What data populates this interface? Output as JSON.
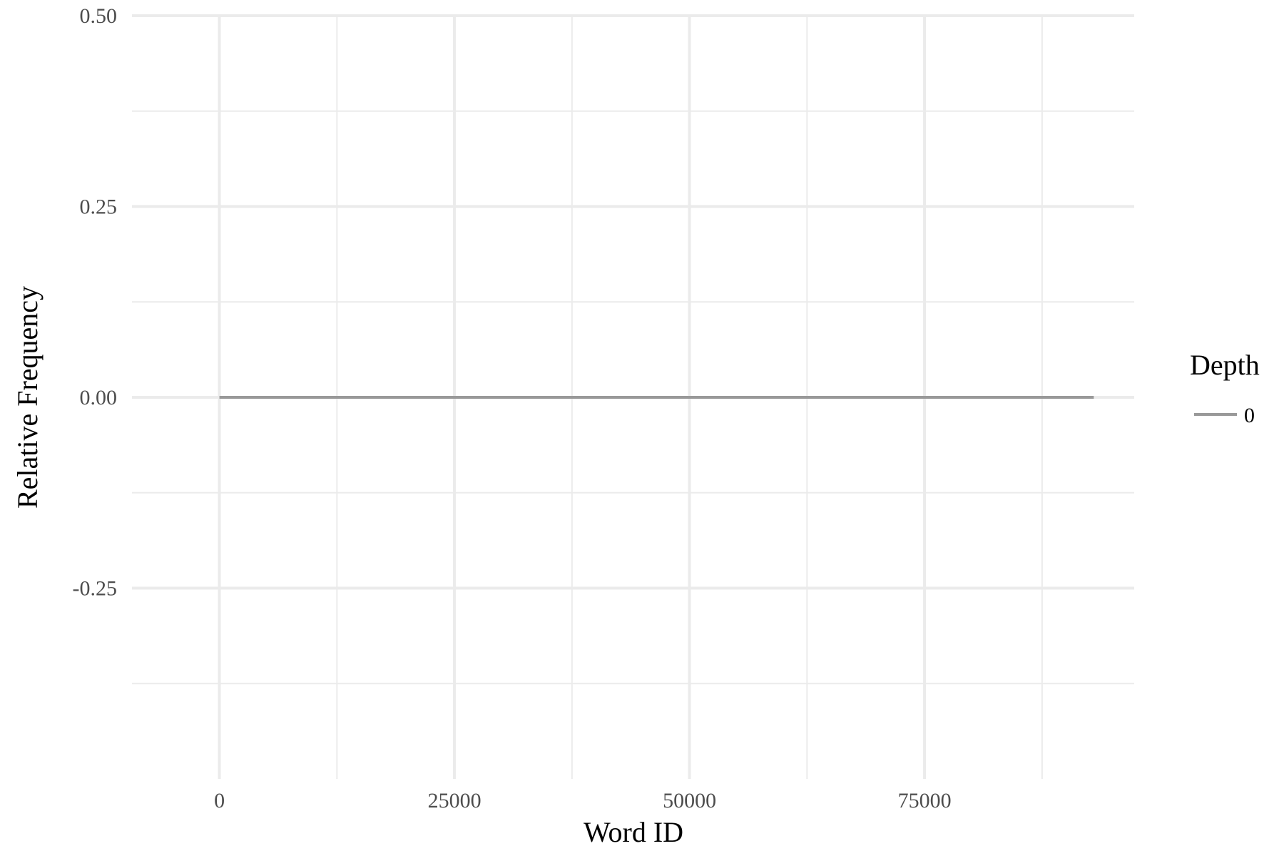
{
  "chart_data": {
    "type": "line",
    "xlabel": "Word ID",
    "ylabel": "Relative Frequency",
    "xlim": [
      -9300,
      97300
    ],
    "ylim": [
      -0.5,
      0.5
    ],
    "x_ticks": [
      0,
      25000,
      50000,
      75000
    ],
    "x_tick_labels": [
      "0",
      "25000",
      "50000",
      "75000"
    ],
    "x_minor_ticks": [
      12500,
      37500,
      62500,
      87500
    ],
    "y_ticks": [
      -0.25,
      0.0,
      0.25,
      0.5
    ],
    "y_tick_labels": [
      "-0.25",
      "0.00",
      "0.25",
      "0.50"
    ],
    "y_minor_ticks": [
      -0.375,
      -0.125,
      0.125,
      0.375
    ],
    "grid": true,
    "legend": {
      "title": "Depth",
      "position": "right",
      "entries": [
        {
          "label": "0",
          "color": "#999999"
        }
      ]
    },
    "series": [
      {
        "name": "0",
        "color": "#999999",
        "x": [
          0,
          93000
        ],
        "y": [
          0.0,
          0.0
        ]
      }
    ]
  }
}
